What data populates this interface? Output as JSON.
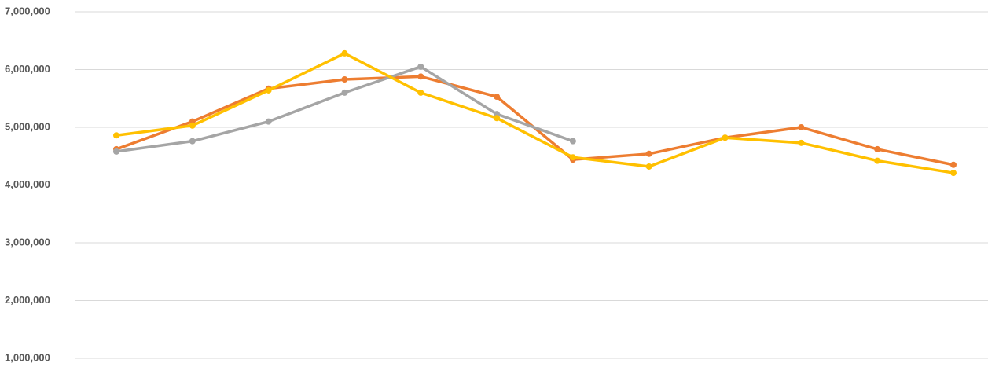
{
  "chart_data": {
    "type": "line",
    "categories": [
      null,
      null,
      null,
      null,
      null,
      null,
      null,
      null,
      null,
      null,
      null,
      null
    ],
    "series": [
      {
        "color": "#ed7d31",
        "values": [
          4620000,
          5100000,
          5670000,
          5830000,
          5880000,
          5530000,
          4440000,
          4540000,
          4820000,
          5000000,
          4620000,
          4350000
        ]
      },
      {
        "color": "#a5a5a5",
        "values": [
          4580000,
          4760000,
          5100000,
          5600000,
          6050000,
          5230000,
          4760000,
          null,
          null,
          null,
          null,
          null
        ]
      },
      {
        "color": "#ffc000",
        "values": [
          4860000,
          5030000,
          5640000,
          6280000,
          5600000,
          5160000,
          4480000,
          4320000,
          4820000,
          4730000,
          4420000,
          4210000
        ]
      }
    ],
    "ylim": [
      1000000,
      7000000
    ],
    "yticks": [
      {
        "value": 1000000,
        "label": "1,000,000"
      },
      {
        "value": 2000000,
        "label": "2,000,000"
      },
      {
        "value": 3000000,
        "label": "3,000,000"
      },
      {
        "value": 4000000,
        "label": "4,000,000"
      },
      {
        "value": 5000000,
        "label": "5,000,000"
      },
      {
        "value": 6000000,
        "label": "6,000,000"
      },
      {
        "value": 7000000,
        "label": "7,000,000"
      }
    ],
    "grid": true
  }
}
